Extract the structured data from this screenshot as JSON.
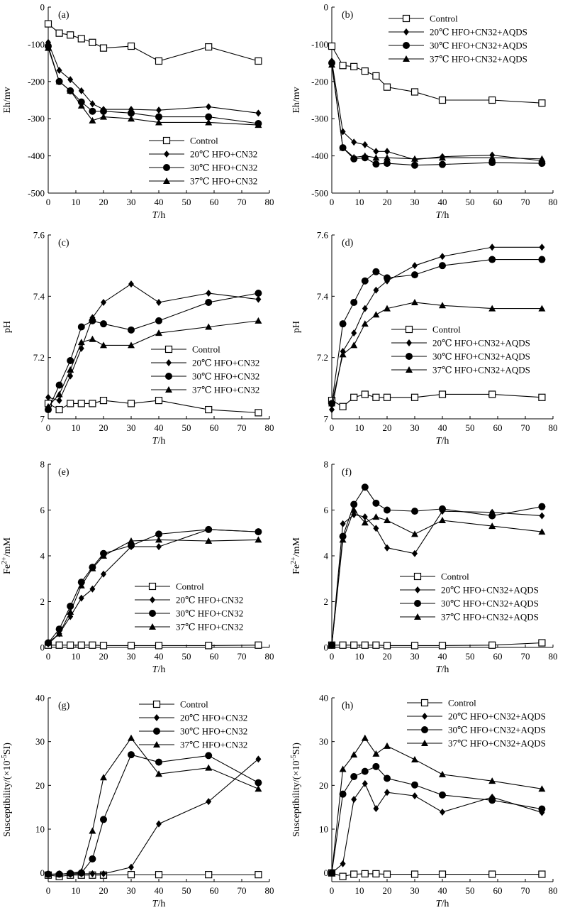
{
  "figure": {
    "chart_data": [
      {
        "panel": "(a)",
        "type": "line",
        "xlabel": "T/h",
        "ylabel": "Eh/mv",
        "xlim": [
          0,
          80
        ],
        "ylim": [
          -500,
          0
        ],
        "xticks": [
          0,
          10,
          20,
          30,
          40,
          50,
          60,
          70,
          80
        ],
        "yticks": [
          -500,
          -400,
          -300,
          -200,
          -100,
          0
        ],
        "legend_position": "lower-right",
        "x": [
          0,
          4,
          8,
          12,
          16,
          20,
          30,
          40,
          58,
          76
        ],
        "series": [
          {
            "name": "Control",
            "marker": "square",
            "values": [
              -45,
              -70,
              -75,
              -85,
              -95,
              -110,
              -105,
              -145,
              -107,
              -145
            ]
          },
          {
            "name": "20℃ HFO+CN32",
            "marker": "diamond",
            "values": [
              -95,
              -170,
              -195,
              -225,
              -260,
              -275,
              -275,
              -277,
              -268,
              -285
            ]
          },
          {
            "name": "30℃ HFO+CN32",
            "marker": "circle",
            "values": [
              -105,
              -200,
              -225,
              -255,
              -280,
              -280,
              -285,
              -295,
              -295,
              -313
            ]
          },
          {
            "name": "37℃ HFO+CN32",
            "marker": "triangle",
            "values": [
              -110,
              -200,
              -225,
              -265,
              -305,
              -295,
              -300,
              -310,
              -310,
              -317
            ]
          }
        ]
      },
      {
        "panel": "(b)",
        "type": "line",
        "xlabel": "T/h",
        "ylabel": "Eh/mv",
        "xlim": [
          0,
          80
        ],
        "ylim": [
          -500,
          0
        ],
        "xticks": [
          0,
          10,
          20,
          30,
          40,
          50,
          60,
          70,
          80
        ],
        "yticks": [
          -500,
          -400,
          -300,
          -200,
          -100,
          0
        ],
        "legend_position": "upper-right",
        "x": [
          0,
          4,
          8,
          12,
          16,
          20,
          30,
          40,
          58,
          76
        ],
        "series": [
          {
            "name": "Control",
            "marker": "square",
            "values": [
              -105,
              -157,
              -160,
              -172,
              -185,
              -215,
              -228,
              -250,
              -250,
              -258
            ]
          },
          {
            "name": "20℃ HFO+CN32+AQDS",
            "marker": "diamond",
            "values": [
              -145,
              -335,
              -363,
              -370,
              -388,
              -388,
              -410,
              -402,
              -398,
              -413
            ]
          },
          {
            "name": "30℃ HFO+CN32+AQDS",
            "marker": "circle",
            "values": [
              -150,
              -378,
              -408,
              -405,
              -422,
              -420,
              -425,
              -423,
              -418,
              -420
            ]
          },
          {
            "name": "37℃ HFO+CN32+AQDS",
            "marker": "triangle",
            "values": [
              -155,
              -378,
              -404,
              -400,
              -405,
              -405,
              -408,
              -405,
              -405,
              -408
            ]
          }
        ]
      },
      {
        "panel": "(c)",
        "type": "line",
        "xlabel": "T/h",
        "ylabel": "pH",
        "xlim": [
          0,
          80
        ],
        "ylim": [
          7,
          7.6
        ],
        "xticks": [
          0,
          10,
          20,
          30,
          40,
          50,
          60,
          70,
          80
        ],
        "yticks": [
          7,
          7.2,
          7.4,
          7.6
        ],
        "legend_position": "lower-right",
        "x": [
          0,
          4,
          8,
          12,
          16,
          20,
          30,
          40,
          58,
          76
        ],
        "series": [
          {
            "name": "Control",
            "marker": "square",
            "values": [
              7.05,
              7.03,
              7.05,
              7.05,
              7.05,
              7.06,
              7.05,
              7.06,
              7.03,
              7.02
            ]
          },
          {
            "name": "20℃ HFO+CN32",
            "marker": "diamond",
            "values": [
              7.07,
              7.06,
              7.14,
              7.23,
              7.33,
              7.38,
              7.44,
              7.38,
              7.41,
              7.39
            ]
          },
          {
            "name": "30℃ HFO+CN32",
            "marker": "circle",
            "values": [
              7.03,
              7.11,
              7.19,
              7.3,
              7.32,
              7.31,
              7.29,
              7.32,
              7.38,
              7.41
            ]
          },
          {
            "name": "37℃ HFO+CN32",
            "marker": "triangle",
            "values": [
              7.04,
              7.08,
              7.16,
              7.25,
              7.26,
              7.24,
              7.24,
              7.28,
              7.3,
              7.32
            ]
          }
        ]
      },
      {
        "panel": "(d)",
        "type": "line",
        "xlabel": "T/h",
        "ylabel": "pH",
        "xlim": [
          0,
          80
        ],
        "ylim": [
          7,
          7.6
        ],
        "xticks": [
          0,
          10,
          20,
          30,
          40,
          50,
          60,
          70,
          80
        ],
        "yticks": [
          7,
          7.2,
          7.4,
          7.6
        ],
        "legend_position": "lower-right",
        "x": [
          0,
          4,
          8,
          12,
          16,
          20,
          30,
          40,
          58,
          76
        ],
        "series": [
          {
            "name": "Control",
            "marker": "square",
            "values": [
              7.06,
              7.04,
              7.07,
              7.08,
              7.07,
              7.07,
              7.07,
              7.08,
              7.08,
              7.07
            ]
          },
          {
            "name": "20℃ HFO+CN32+AQDS",
            "marker": "diamond",
            "values": [
              7.03,
              7.22,
              7.28,
              7.36,
              7.42,
              7.45,
              7.5,
              7.53,
              7.56,
              7.56
            ]
          },
          {
            "name": "30℃ HFO+CN32+AQDS",
            "marker": "circle",
            "values": [
              7.05,
              7.31,
              7.38,
              7.45,
              7.48,
              7.46,
              7.47,
              7.5,
              7.52,
              7.52
            ]
          },
          {
            "name": "37℃ HFO+CN32+AQDS",
            "marker": "triangle",
            "values": [
              7.05,
              7.21,
              7.24,
              7.31,
              7.34,
              7.36,
              7.38,
              7.37,
              7.36,
              7.36
            ]
          }
        ]
      },
      {
        "panel": "(e)",
        "type": "line",
        "xlabel": "T/h",
        "ylabel": "Fe2+/mM",
        "ylabel_main": "Fe",
        "ylabel_sup": "2+",
        "ylabel_unit": "/mM",
        "xlim": [
          0,
          80
        ],
        "ylim": [
          0,
          8
        ],
        "xticks": [
          0,
          10,
          20,
          30,
          40,
          50,
          60,
          70,
          80
        ],
        "yticks": [
          0,
          2,
          4,
          6,
          8
        ],
        "legend_position": "lower-right",
        "x": [
          0,
          4,
          8,
          12,
          16,
          20,
          30,
          40,
          58,
          76
        ],
        "series": [
          {
            "name": "Control",
            "marker": "square",
            "values": [
              0.1,
              0.1,
              0.1,
              0.1,
              0.1,
              0.08,
              0.08,
              0.08,
              0.08,
              0.1
            ]
          },
          {
            "name": "20℃ HFO+CN32",
            "marker": "diamond",
            "values": [
              0.15,
              0.6,
              1.35,
              2.15,
              2.55,
              3.2,
              4.4,
              4.4,
              5.15,
              5.05
            ]
          },
          {
            "name": "30℃ HFO+CN32",
            "marker": "circle",
            "values": [
              0.2,
              0.8,
              1.8,
              2.85,
              3.5,
              4.1,
              4.45,
              4.95,
              5.15,
              5.05
            ]
          },
          {
            "name": "37℃ HFO+CN32",
            "marker": "triangle",
            "values": [
              0.2,
              0.6,
              1.55,
              2.7,
              3.45,
              4.0,
              4.65,
              4.7,
              4.65,
              4.7
            ]
          }
        ]
      },
      {
        "panel": "(f)",
        "type": "line",
        "xlabel": "T/h",
        "ylabel": "Fe2+/mM",
        "ylabel_main": "Fe",
        "ylabel_sup": "2+",
        "ylabel_unit": "/mM",
        "xlim": [
          0,
          80
        ],
        "ylim": [
          0,
          8
        ],
        "xticks": [
          0,
          10,
          20,
          30,
          40,
          50,
          60,
          70,
          80
        ],
        "yticks": [
          0,
          2,
          4,
          6,
          8
        ],
        "legend_position": "lower-right",
        "x": [
          0,
          4,
          8,
          12,
          16,
          20,
          30,
          40,
          58,
          76
        ],
        "series": [
          {
            "name": "Control",
            "marker": "square",
            "values": [
              0.1,
              0.1,
              0.1,
              0.1,
              0.1,
              0.08,
              0.08,
              0.08,
              0.1,
              0.2
            ]
          },
          {
            "name": "20℃ HFO+CN32+AQDS",
            "marker": "diamond",
            "values": [
              0.1,
              5.4,
              5.8,
              5.7,
              5.2,
              4.35,
              4.1,
              5.95,
              5.9,
              5.75
            ]
          },
          {
            "name": "30℃ HFO+CN32+AQDS",
            "marker": "circle",
            "values": [
              0.1,
              4.85,
              6.25,
              7.0,
              6.3,
              6.0,
              5.95,
              6.05,
              5.75,
              6.15
            ]
          },
          {
            "name": "37℃ HFO+CN32+AQDS",
            "marker": "triangle",
            "values": [
              0.1,
              4.7,
              6.0,
              5.45,
              5.7,
              5.55,
              4.95,
              5.55,
              5.3,
              5.05
            ]
          }
        ]
      },
      {
        "panel": "(g)",
        "type": "line",
        "xlabel": "T/h",
        "ylabel": "Susceptibility/(×10-5SI)",
        "ylabel_main": "Susceptibility/(×10",
        "ylabel_sup": "-5",
        "ylabel_unit": "SI)",
        "xlim": [
          0,
          80
        ],
        "ylim": [
          -2,
          40
        ],
        "xticks": [
          0,
          10,
          20,
          30,
          40,
          50,
          60,
          70,
          80
        ],
        "yticks": [
          0,
          10,
          20,
          30,
          40
        ],
        "legend_position": "upper-right",
        "x": [
          0,
          4,
          8,
          12,
          16,
          20,
          30,
          40,
          58,
          76
        ],
        "series": [
          {
            "name": "Control",
            "marker": "square",
            "values": [
              -0.5,
              -0.8,
              -0.5,
              -0.5,
              -0.5,
              -0.5,
              -0.4,
              -0.4,
              -0.4,
              -0.4
            ]
          },
          {
            "name": "20℃ HFO+CN32",
            "marker": "diamond",
            "values": [
              -0.3,
              -0.2,
              -0.3,
              -0.2,
              -0.2,
              -0.2,
              1.3,
              11.2,
              16.3,
              26.0
            ]
          },
          {
            "name": "30℃ HFO+CN32",
            "marker": "circle",
            "values": [
              -0.3,
              -0.3,
              -0.1,
              0.0,
              3.2,
              12.2,
              27.0,
              25.3,
              26.8,
              20.6
            ]
          },
          {
            "name": "37℃ HFO+CN32",
            "marker": "triangle",
            "values": [
              -0.3,
              -0.3,
              -0.1,
              0.3,
              9.6,
              21.8,
              30.8,
              22.6,
              24.0,
              19.2
            ]
          }
        ]
      },
      {
        "panel": "(h)",
        "type": "line",
        "xlabel": "T/h",
        "ylabel": "Susceptibility/(×10-5SI)",
        "ylabel_main": "Susceptibility/(×10",
        "ylabel_sup": "-5",
        "ylabel_unit": "SI)",
        "xlim": [
          0,
          80
        ],
        "ylim": [
          -2,
          40
        ],
        "xticks": [
          0,
          10,
          20,
          30,
          40,
          50,
          60,
          70,
          80
        ],
        "yticks": [
          0,
          10,
          20,
          30,
          40
        ],
        "legend_position": "upper-right",
        "x": [
          0,
          4,
          8,
          12,
          16,
          20,
          30,
          40,
          58,
          76
        ],
        "series": [
          {
            "name": "Control",
            "marker": "square",
            "values": [
              0.0,
              -0.8,
              -0.3,
              -0.2,
              -0.2,
              -0.3,
              -0.3,
              -0.3,
              -0.3,
              -0.3
            ]
          },
          {
            "name": "20℃ HFO+CN32+AQDS",
            "marker": "diamond",
            "values": [
              0.0,
              2.1,
              16.8,
              20.4,
              14.7,
              18.4,
              17.6,
              13.9,
              17.3,
              13.8
            ]
          },
          {
            "name": "30℃ HFO+CN32+AQDS",
            "marker": "circle",
            "values": [
              0.0,
              18.0,
              22.0,
              23.2,
              24.3,
              21.6,
              20.1,
              17.8,
              16.6,
              14.6
            ]
          },
          {
            "name": "37℃ HFO+CN32+AQDS",
            "marker": "triangle",
            "values": [
              0.0,
              23.7,
              27.0,
              30.8,
              27.2,
              29.0,
              25.9,
              22.5,
              21.0,
              19.2
            ]
          }
        ]
      }
    ]
  }
}
